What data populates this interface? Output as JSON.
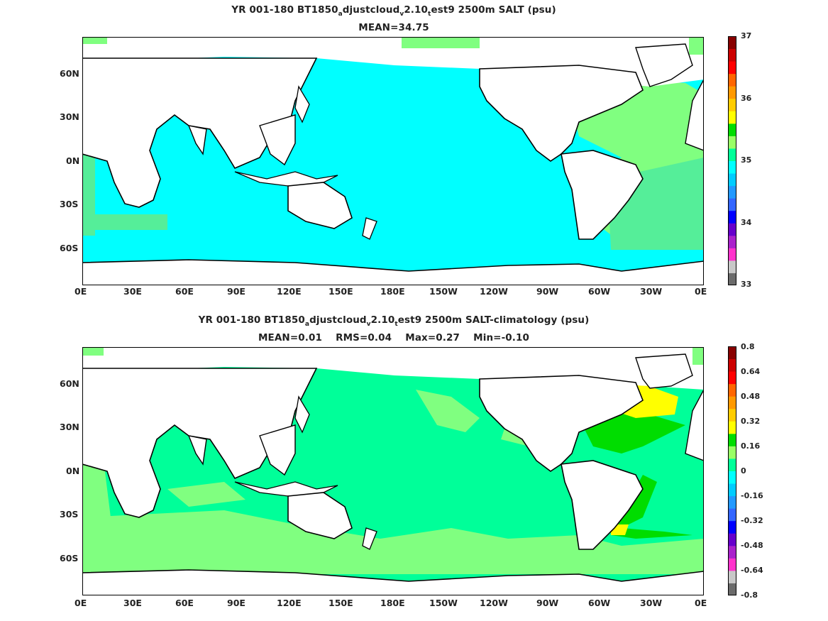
{
  "panels": [
    {
      "title_parts": [
        "YR 001-180 BT1850",
        "a",
        "djustcloud",
        "v",
        "2.10",
        "t",
        "est9 2500m SALT (psu)"
      ],
      "stats": "MEAN=34.75",
      "colorbar": {
        "labels": [
          "37",
          "36",
          "35",
          "34",
          "33"
        ],
        "colors": [
          "#6b6b6b",
          "#c8c8c8",
          "#ff33cc",
          "#aa22cc",
          "#6600cc",
          "#0000ff",
          "#3366ff",
          "#2299ff",
          "#00ccff",
          "#00ffff",
          "#00ff99",
          "#99ff66",
          "#00dd00",
          "#ffff00",
          "#ffcc00",
          "#ff9900",
          "#ff6600",
          "#ff0000",
          "#cc0000",
          "#880000"
        ]
      },
      "map_fill": {
        "pacific_indian": "#00ffff",
        "atlantic": "#80ff80",
        "atlantic_south": "#55ee99",
        "land": "#ffffff"
      }
    },
    {
      "title_parts": [
        "YR 001-180 BT1850",
        "a",
        "djustcloud",
        "v",
        "2.10",
        "t",
        "est9 2500m SALT-climatology (psu)"
      ],
      "stats": "MEAN=0.01    RMS=0.04    Max=0.27    Min=-0.10",
      "colorbar": {
        "labels": [
          "0.8",
          "0.64",
          "0.48",
          "0.32",
          "0.16",
          "0",
          "-0.16",
          "-0.32",
          "-0.48",
          "-0.64",
          "-0.8"
        ],
        "colors": [
          "#6b6b6b",
          "#c8c8c8",
          "#ff33cc",
          "#aa22cc",
          "#6600cc",
          "#0000ff",
          "#3366ff",
          "#2299ff",
          "#00ccff",
          "#00ffff",
          "#00ff99",
          "#99ff66",
          "#00dd00",
          "#ffff00",
          "#ffcc00",
          "#ff9900",
          "#ff6600",
          "#ff0000",
          "#cc0000",
          "#880000"
        ]
      },
      "map_fill": {
        "ocean": "#00ff99",
        "patch": "#80ff80",
        "atlantic_positive": "#00dd00",
        "north_atlantic_high": "#ffff00",
        "land": "#ffffff"
      }
    }
  ],
  "axes": {
    "x_ticks": [
      "0E",
      "30E",
      "60E",
      "90E",
      "120E",
      "150E",
      "180E",
      "150W",
      "120W",
      "90W",
      "60W",
      "30W",
      "0E"
    ],
    "y_ticks": [
      "60N",
      "30N",
      "0N",
      "30S",
      "60S"
    ]
  }
}
